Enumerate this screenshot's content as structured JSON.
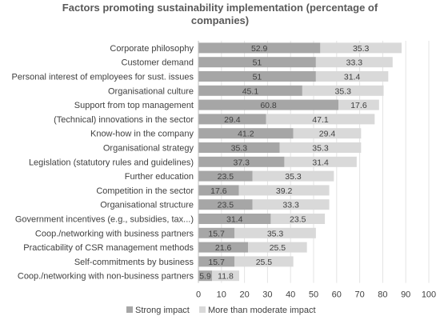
{
  "chart_data": {
    "type": "bar",
    "orientation": "horizontal",
    "stacked": true,
    "title": "Factors promoting sustainability implementation (percentage of\ncompanies)",
    "categories": [
      "Corporate philosophy",
      "Customer demand",
      "Personal interest of employees for sust. issues",
      "Organisational culture",
      "Support from top management",
      "(Technical) innovations in the sector",
      "Know-how in the company",
      "Organisational strategy",
      "Legislation (statutory rules and guidelines)",
      "Further education",
      "Competition in the sector",
      "Organisational structure",
      "Government incentives (e.g., subsidies, tax...)",
      "Coop./networking with business partners",
      "Practicability of CSR management methods",
      "Self-commitments by business",
      "Coop./networking with non-business partners"
    ],
    "series": [
      {
        "name": "Strong impact",
        "color": "#a6a6a6",
        "values": [
          52.9,
          51,
          51,
          45.1,
          60.8,
          29.4,
          41.2,
          35.3,
          37.3,
          23.5,
          17.6,
          23.5,
          31.4,
          15.7,
          21.6,
          15.7,
          5.9
        ]
      },
      {
        "name": "More than moderate impact",
        "color": "#d9d9d9",
        "values": [
          35.3,
          33.3,
          31.4,
          35.3,
          17.6,
          47.1,
          29.4,
          35.3,
          31.4,
          35.3,
          39.2,
          33.3,
          23.5,
          35.3,
          25.5,
          25.5,
          11.8
        ]
      }
    ],
    "xlim": [
      0,
      100
    ],
    "xticks": [
      0,
      10,
      20,
      30,
      40,
      50,
      60,
      70,
      80,
      90,
      100
    ],
    "legend_position": "bottom"
  }
}
